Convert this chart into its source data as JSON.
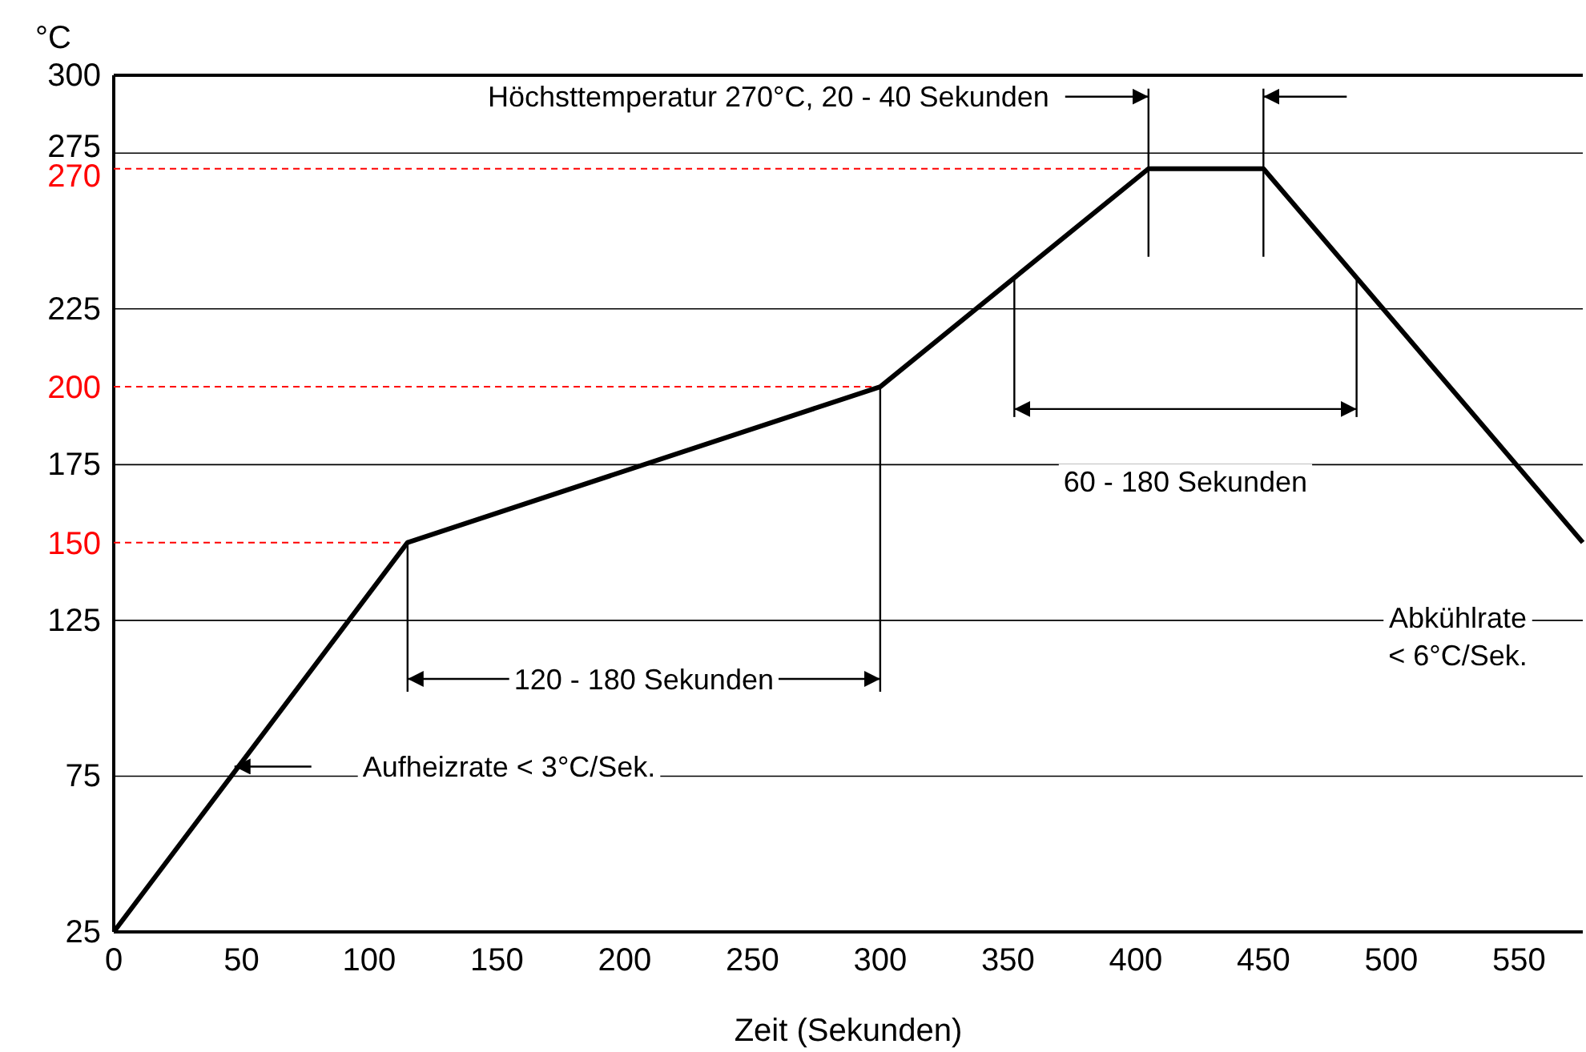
{
  "chart_data": {
    "type": "line",
    "xlabel": "Zeit (Sekunden)",
    "ylabel": "°C",
    "x": [
      0,
      115,
      300,
      405,
      450,
      575
    ],
    "series": [
      {
        "color": "#000000",
        "values": [
          25,
          150,
          200,
          270,
          270,
          150
        ]
      }
    ],
    "xlim": [
      0,
      575
    ],
    "xticks": [
      0,
      50,
      100,
      150,
      200,
      250,
      300,
      350,
      400,
      450,
      500,
      550
    ],
    "ylim": [
      25,
      300
    ],
    "yticks": [
      25,
      75,
      125,
      175,
      225,
      275,
      300
    ],
    "grid": "y",
    "marker": "none",
    "line_style": "solid",
    "ref_lines": [
      {
        "axis": "y",
        "value": 270,
        "label": "270",
        "color": "#ff0000",
        "line_style": "dashed"
      },
      {
        "axis": "y",
        "value": 200,
        "label": "200",
        "color": "#ff0000",
        "line_style": "dashed"
      },
      {
        "axis": "y",
        "value": 150,
        "label": "150",
        "color": "#ff0000",
        "line_style": "dashed"
      }
    ],
    "annotations": [
      "Höchsttemperatur 270°C, 20 - 40 Sekunden",
      "60 - 180 Sekunden",
      "120 - 180 Sekunden",
      "Aufheizrate < 3°C/Sek.",
      "Abkühlrate < 6°C/Sek."
    ]
  }
}
